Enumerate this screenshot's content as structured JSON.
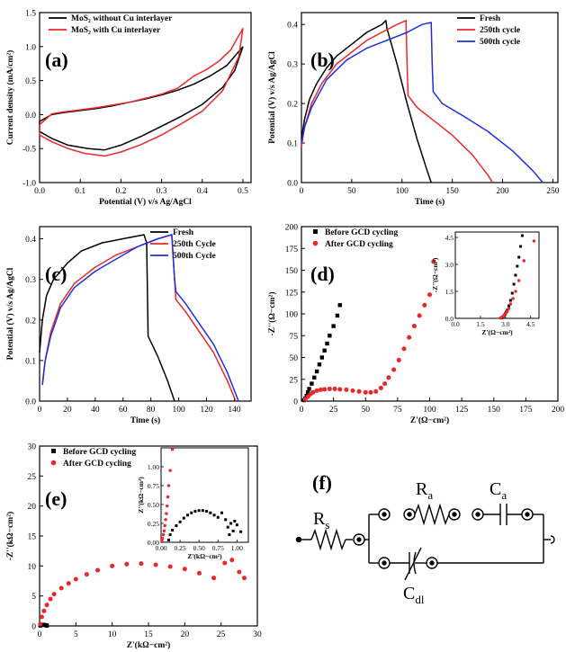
{
  "chart_data": [
    {
      "type": "line",
      "panel_label": "(a)",
      "xlabel": "Potential (V) v/s Ag/AgCl",
      "ylabel": "Current density (mA/cm²)",
      "xlim": [
        0.0,
        0.52
      ],
      "ylim": [
        -1.0,
        1.5
      ],
      "xticks": [
        0.0,
        0.1,
        0.2,
        0.3,
        0.4,
        0.5
      ],
      "yticks": [
        -1.0,
        -0.5,
        0.0,
        0.5,
        1.0,
        1.5
      ],
      "legend_position": "top-left",
      "series": [
        {
          "name": "MoS₂ without Cu interlayer",
          "color": "#000000",
          "x": [
            0.5,
            0.46,
            0.42,
            0.38,
            0.34,
            0.3,
            0.26,
            0.22,
            0.18,
            0.14,
            0.1,
            0.06,
            0.03,
            0.0,
            0.0,
            0.03,
            0.07,
            0.12,
            0.16,
            0.2,
            0.25,
            0.3,
            0.35,
            0.4,
            0.45,
            0.48,
            0.5
          ],
          "y": [
            1.0,
            0.72,
            0.57,
            0.45,
            0.36,
            0.29,
            0.23,
            0.18,
            0.13,
            0.09,
            0.06,
            0.03,
            0.0,
            -0.1,
            -0.25,
            -0.35,
            -0.45,
            -0.5,
            -0.52,
            -0.45,
            -0.32,
            -0.17,
            -0.02,
            0.15,
            0.4,
            0.65,
            1.0
          ]
        },
        {
          "name": "MoS₂ with Cu interlayer",
          "color": "#e8282b",
          "x": [
            0.5,
            0.47,
            0.44,
            0.41,
            0.38,
            0.34,
            0.3,
            0.26,
            0.22,
            0.18,
            0.14,
            0.1,
            0.06,
            0.03,
            0.0,
            0.0,
            0.03,
            0.07,
            0.11,
            0.16,
            0.2,
            0.25,
            0.3,
            0.35,
            0.4,
            0.45,
            0.49,
            0.5
          ],
          "y": [
            1.27,
            0.95,
            0.78,
            0.66,
            0.57,
            0.39,
            0.3,
            0.24,
            0.18,
            0.14,
            0.1,
            0.07,
            0.04,
            0.01,
            -0.15,
            -0.3,
            -0.4,
            -0.5,
            -0.57,
            -0.61,
            -0.55,
            -0.44,
            -0.3,
            -0.13,
            0.05,
            0.35,
            0.85,
            1.27
          ]
        }
      ]
    },
    {
      "type": "line",
      "panel_label": "(b)",
      "xlabel": "Time (s)",
      "ylabel": "Potential (V) v/s Ag/AgCl",
      "xlim": [
        0,
        255
      ],
      "ylim": [
        0.0,
        0.43
      ],
      "xticks": [
        0,
        50,
        100,
        150,
        200,
        250
      ],
      "yticks": [
        0.0,
        0.1,
        0.2,
        0.3,
        0.4
      ],
      "legend_position": "top-right",
      "series": [
        {
          "name": "Fresh",
          "color": "#000000",
          "x": [
            0,
            3,
            8,
            15,
            25,
            35,
            50,
            65,
            80,
            84,
            85,
            95,
            105,
            115,
            125,
            129
          ],
          "y": [
            0.11,
            0.16,
            0.21,
            0.25,
            0.29,
            0.32,
            0.35,
            0.38,
            0.4,
            0.41,
            0.39,
            0.3,
            0.2,
            0.11,
            0.03,
            0.0
          ]
        },
        {
          "name": "250th cycle",
          "color": "#e8282b",
          "x": [
            0,
            3,
            10,
            20,
            35,
            50,
            65,
            80,
            95,
            104,
            105,
            106,
            115,
            130,
            150,
            170,
            185,
            190
          ],
          "y": [
            0.09,
            0.14,
            0.2,
            0.25,
            0.3,
            0.33,
            0.36,
            0.38,
            0.4,
            0.41,
            0.3,
            0.22,
            0.19,
            0.16,
            0.12,
            0.07,
            0.02,
            0.0
          ]
        },
        {
          "name": "500th cycle",
          "color": "#1f2fe0",
          "x": [
            0,
            3,
            10,
            25,
            45,
            65,
            85,
            105,
            120,
            129,
            130,
            131,
            140,
            160,
            185,
            210,
            230,
            240
          ],
          "y": [
            0.1,
            0.14,
            0.19,
            0.26,
            0.31,
            0.34,
            0.36,
            0.38,
            0.4,
            0.405,
            0.3,
            0.23,
            0.2,
            0.17,
            0.13,
            0.08,
            0.03,
            0.0
          ]
        }
      ]
    },
    {
      "type": "line",
      "panel_label": "(c)",
      "xlabel": "Time (s)",
      "ylabel": "Potential (V) v/s Ag/AgCl",
      "xlim": [
        0,
        152
      ],
      "ylim": [
        0.0,
        0.43
      ],
      "xticks": [
        0,
        20,
        40,
        60,
        80,
        100,
        120,
        140
      ],
      "yticks": [
        0.0,
        0.1,
        0.2,
        0.3,
        0.4
      ],
      "legend_position": "top-right",
      "series": [
        {
          "name": "Fresh",
          "color": "#000000",
          "x": [
            0,
            2,
            5,
            10,
            20,
            30,
            45,
            60,
            75,
            77,
            78,
            85,
            92,
            97
          ],
          "y": [
            0.12,
            0.2,
            0.26,
            0.3,
            0.34,
            0.37,
            0.39,
            0.4,
            0.41,
            0.39,
            0.16,
            0.11,
            0.05,
            0.0
          ]
        },
        {
          "name": "250th Cycle",
          "color": "#e8282b",
          "x": [
            2,
            4,
            8,
            15,
            25,
            40,
            55,
            70,
            85,
            95,
            97,
            98,
            105,
            115,
            125,
            135,
            141
          ],
          "y": [
            0.04,
            0.1,
            0.17,
            0.24,
            0.29,
            0.33,
            0.36,
            0.38,
            0.4,
            0.41,
            0.3,
            0.25,
            0.22,
            0.17,
            0.12,
            0.05,
            0.0
          ]
        },
        {
          "name": "500th Cycle",
          "color": "#1f2fe0",
          "x": [
            2,
            4,
            8,
            15,
            25,
            40,
            55,
            70,
            85,
            95,
            97,
            98,
            105,
            115,
            125,
            135,
            143
          ],
          "y": [
            0.04,
            0.1,
            0.16,
            0.23,
            0.28,
            0.32,
            0.35,
            0.38,
            0.4,
            0.41,
            0.3,
            0.27,
            0.24,
            0.19,
            0.14,
            0.07,
            0.0
          ]
        }
      ]
    },
    {
      "type": "scatter",
      "panel_label": "(d)",
      "xlabel": "Z'(Ω−cm²)",
      "ylabel": "-Z''(Ω−cm²)",
      "xlim": [
        0,
        200
      ],
      "ylim": [
        0,
        200
      ],
      "xticks": [
        0,
        25,
        50,
        75,
        100,
        125,
        150,
        175,
        200
      ],
      "yticks": [
        0,
        25,
        50,
        75,
        100,
        125,
        150,
        175,
        200
      ],
      "legend_position": "top-left",
      "series": [
        {
          "name": "Before GCD cycling",
          "color": "#000000",
          "marker": "square",
          "x": [
            2,
            3,
            4,
            5,
            6,
            8,
            10,
            12,
            14,
            16,
            18,
            20,
            22,
            25,
            28,
            30
          ],
          "y": [
            1,
            3,
            6,
            10,
            14,
            20,
            27,
            34,
            42,
            50,
            58,
            66,
            75,
            86,
            98,
            110
          ]
        },
        {
          "name": "After GCD cycling",
          "color": "#e8282b",
          "marker": "circle",
          "x": [
            3,
            5,
            7,
            9,
            12,
            15,
            18,
            22,
            26,
            30,
            35,
            40,
            45,
            50,
            54,
            58,
            62,
            65,
            68,
            72,
            76,
            80,
            84,
            88,
            92,
            96,
            100,
            103
          ],
          "y": [
            2,
            5,
            8,
            10,
            12,
            13,
            13.5,
            14,
            14,
            13.5,
            13,
            12,
            11,
            10,
            10,
            11,
            15,
            20,
            27,
            36,
            47,
            60,
            73,
            86,
            98,
            110,
            122,
            160
          ]
        }
      ],
      "inset": {
        "xlim": [
          0,
          5
        ],
        "ylim": [
          0,
          4.8
        ],
        "xticks": [
          0,
          1.5,
          3.0,
          4.5
        ],
        "yticks": [
          0,
          1.5,
          3.0,
          4.5
        ],
        "xlabel": "Z'(Ω−cm²)",
        "ylabel": "-Z''(Ω−cm²)",
        "series": [
          {
            "color": "#000000",
            "marker": "square",
            "x": [
              2.75,
              2.8,
              2.85,
              2.9,
              2.95,
              3.0,
              3.05,
              3.1,
              3.2,
              3.3,
              3.4,
              3.5,
              3.6,
              3.7,
              3.8,
              3.9,
              4.0
            ],
            "y": [
              0.02,
              0.05,
              0.1,
              0.15,
              0.2,
              0.28,
              0.36,
              0.45,
              0.7,
              1.0,
              1.4,
              1.9,
              2.4,
              2.9,
              3.4,
              4.0,
              4.6
            ]
          },
          {
            "color": "#e8282b",
            "marker": "circle",
            "x": [
              2.7,
              2.8,
              2.9,
              3.0,
              3.1,
              3.2,
              3.3,
              3.45,
              3.6,
              3.8,
              4.1,
              4.7
            ],
            "y": [
              0.02,
              0.08,
              0.15,
              0.25,
              0.38,
              0.55,
              0.8,
              1.1,
              1.5,
              2.1,
              3.2,
              4.3
            ]
          }
        ]
      }
    },
    {
      "type": "scatter",
      "panel_label": "(e)",
      "xlabel": "Z'(kΩ−cm²)",
      "ylabel": "-Z''(kΩ−cm²)",
      "xlim": [
        0,
        30
      ],
      "ylim": [
        0,
        30
      ],
      "xticks": [
        0,
        5,
        10,
        15,
        20,
        25,
        30
      ],
      "yticks": [
        0,
        5,
        10,
        15,
        20,
        25,
        30
      ],
      "legend_position": "top-left",
      "series": [
        {
          "name": "Before GCD cycling",
          "color": "#000000",
          "marker": "square",
          "x": [
            0.1,
            0.2,
            0.3,
            0.5,
            0.7,
            0.9,
            1.0
          ],
          "y": [
            0.05,
            0.15,
            0.2,
            0.2,
            0.15,
            0.1,
            0.05
          ]
        },
        {
          "name": "After GCD cycling",
          "color": "#e8282b",
          "marker": "circle",
          "x": [
            0.1,
            0.3,
            0.6,
            1.0,
            1.5,
            2.0,
            3.0,
            4.0,
            5.0,
            6.5,
            8.0,
            10.0,
            12.0,
            14.0,
            16.0,
            18.0,
            20.0,
            22.0,
            24.0,
            25.5,
            26.5,
            27.5,
            28.2
          ],
          "y": [
            0.3,
            1.5,
            2.5,
            3.5,
            4.5,
            5.3,
            6.3,
            7.1,
            7.8,
            8.6,
            9.3,
            10.0,
            10.3,
            10.4,
            10.2,
            9.9,
            9.5,
            8.8,
            8.0,
            10.5,
            11.0,
            9.0,
            8.0
          ]
        }
      ],
      "inset": {
        "xlim": [
          0,
          1.15
        ],
        "ylim": [
          0,
          1.25
        ],
        "xticks": [
          0,
          0.25,
          0.5,
          0.75,
          1.0
        ],
        "yticks": [
          0,
          0.25,
          0.5,
          0.75,
          1.0
        ],
        "xlabel": "Z'(kΩ−cm²)",
        "ylabel": "Z''(kΩ−cm²)",
        "xtick_labels": [
          "0.00",
          "0.25",
          "0.50",
          "0.75",
          "1.00"
        ],
        "ytick_labels": [
          "0.00",
          "0.25",
          "0.50",
          "0.75",
          "1.00"
        ],
        "series": [
          {
            "color": "#000000",
            "marker": "square",
            "x": [
              0.1,
              0.12,
              0.15,
              0.2,
              0.25,
              0.3,
              0.35,
              0.4,
              0.45,
              0.5,
              0.55,
              0.6,
              0.65,
              0.7,
              0.75,
              0.8,
              0.85,
              0.88,
              0.92,
              0.95,
              1.0,
              1.05,
              0.9,
              0.97
            ],
            "y": [
              0.03,
              0.1,
              0.16,
              0.22,
              0.27,
              0.32,
              0.36,
              0.39,
              0.41,
              0.42,
              0.42,
              0.41,
              0.39,
              0.36,
              0.33,
              0.39,
              0.3,
              0.2,
              0.25,
              0.15,
              0.23,
              0.14,
              0.1,
              0.28
            ]
          },
          {
            "color": "#e8282b",
            "marker": "circle",
            "x": [
              0.01,
              0.02,
              0.03,
              0.04,
              0.05,
              0.06,
              0.07,
              0.08,
              0.09,
              0.1,
              0.12,
              0.15
            ],
            "y": [
              0.02,
              0.05,
              0.1,
              0.15,
              0.22,
              0.3,
              0.38,
              0.48,
              0.6,
              0.75,
              0.95,
              1.23
            ]
          }
        ]
      }
    }
  ],
  "circuit": {
    "panel_label": "(f)",
    "resistor_s": "R",
    "resistor_s_sub": "s",
    "resistor_a": "R",
    "resistor_a_sub": "a",
    "capacitor_a": "C",
    "capacitor_a_sub": "a",
    "capacitor_dl": "C",
    "capacitor_dl_sub": "dl"
  }
}
